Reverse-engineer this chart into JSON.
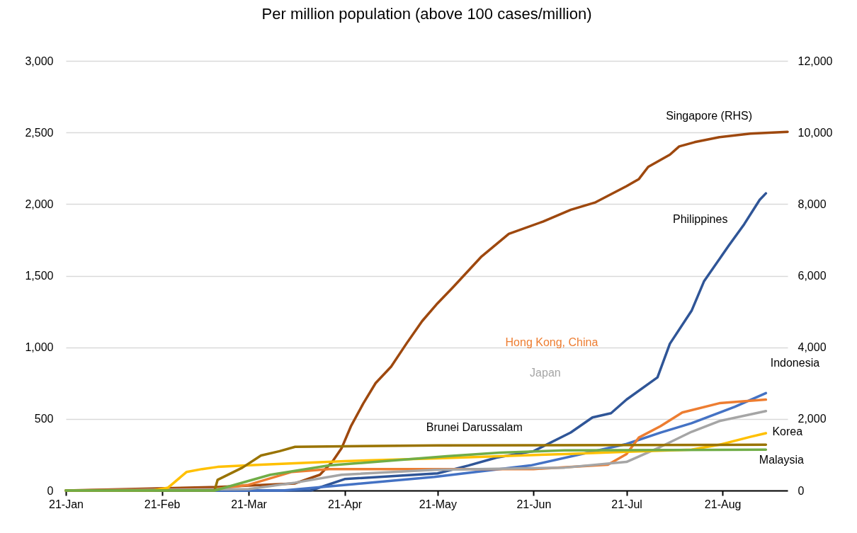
{
  "chart_data": {
    "type": "line",
    "title": "Per million population (above 100 cases/million)",
    "xlim": [
      "--01-21",
      "--09-11"
    ],
    "xticks": [
      {
        "value": "--01-21",
        "label": "21-Jan"
      },
      {
        "value": "--02-21",
        "label": "21-Feb"
      },
      {
        "value": "--03-21",
        "label": "21-Mar"
      },
      {
        "value": "--04-21",
        "label": "21-Apr"
      },
      {
        "value": "--05-21",
        "label": "21-May"
      },
      {
        "value": "--06-21",
        "label": "21-Jun"
      },
      {
        "value": "--07-21",
        "label": "21-Jul"
      },
      {
        "value": "--08-21",
        "label": "21-Aug"
      }
    ],
    "ylim": [
      0,
      3000
    ],
    "yticks": [
      0,
      500,
      {
        "value": 1000,
        "label": "1,000"
      },
      {
        "value": 1500,
        "label": "1,500"
      },
      {
        "value": 2000,
        "label": "2,000"
      },
      {
        "value": 2500,
        "label": "2,500"
      },
      {
        "value": 3000,
        "label": "3,000"
      }
    ],
    "y2lim": [
      0,
      12000
    ],
    "y2ticks": [
      0,
      {
        "value": 2000,
        "label": "2,000"
      },
      {
        "value": 4000,
        "label": "4,000"
      },
      {
        "value": 6000,
        "label": "6,000"
      },
      {
        "value": 8000,
        "label": "8,000"
      },
      {
        "value": 10000,
        "label": "10,000"
      },
      {
        "value": 12000,
        "label": "12,000"
      }
    ],
    "grid": "y",
    "line_style": "solid",
    "marker": "none",
    "series": [
      {
        "name": "Singapore (RHS)",
        "color": "#9e480e",
        "axis": "y2",
        "x": [
          "--01-21",
          "--03-11",
          "--04-05",
          "--04-13",
          "--04-17",
          "--04-20",
          "--04-23",
          "--04-27",
          "--05-01",
          "--05-06",
          "--05-11",
          "--05-16",
          "--05-21",
          "--05-26",
          "--06-04",
          "--06-13",
          "--06-24",
          "--07-03",
          "--07-11",
          "--07-21",
          "--07-25",
          "--07-28",
          "--08-04",
          "--08-07",
          "--08-12",
          "--08-20",
          "--08-30",
          "--09-11"
        ],
        "values": [
          0,
          100,
          200,
          440,
          800,
          1180,
          1790,
          2430,
          3000,
          3460,
          4110,
          4730,
          5230,
          5680,
          6520,
          7170,
          7510,
          7840,
          8050,
          8500,
          8700,
          9040,
          9380,
          9610,
          9730,
          9870,
          9970,
          10020
        ]
      },
      {
        "name": "Philippines",
        "color": "#2f5597",
        "x": [
          "--01-21",
          "--04-10",
          "--04-21",
          "--05-21",
          "--05-31",
          "--06-09",
          "--06-21",
          "--07-03",
          "--07-10",
          "--07-16",
          "--07-21",
          "--07-31",
          "--08-04",
          "--08-11",
          "--08-15",
          "--08-23",
          "--08-28",
          "--09-02",
          "--09-04"
        ],
        "values": [
          0,
          0,
          80,
          120,
          175,
          230,
          275,
          405,
          510,
          540,
          635,
          790,
          1025,
          1255,
          1460,
          1710,
          1860,
          2030,
          2075
        ]
      },
      {
        "name": "Indonesia",
        "color": "#4472c4",
        "x": [
          "--01-21",
          "--04-01",
          "--04-24",
          "--05-20",
          "--06-20",
          "--07-21",
          "--08-01",
          "--08-11",
          "--08-25",
          "--09-04"
        ],
        "values": [
          0,
          0,
          45,
          95,
          175,
          325,
          405,
          470,
          585,
          680
        ]
      },
      {
        "name": "Hong Kong, China",
        "color": "#ed7d31",
        "x": [
          "--01-21",
          "--03-10",
          "--03-21",
          "--04-04",
          "--04-16",
          "--06-21",
          "--07-15",
          "--07-21",
          "--07-25",
          "--08-01",
          "--08-08",
          "--08-20",
          "--09-04"
        ],
        "values": [
          0,
          10,
          40,
          130,
          150,
          150,
          180,
          255,
          370,
          450,
          545,
          610,
          635
        ]
      },
      {
        "name": "Japan",
        "color": "#a5a5a5",
        "x": [
          "--01-21",
          "--03-21",
          "--04-05",
          "--04-20",
          "--05-20",
          "--07-01",
          "--07-21",
          "--08-01",
          "--08-11",
          "--08-20",
          "--09-04"
        ],
        "values": [
          0,
          10,
          55,
          110,
          145,
          160,
          200,
          305,
          410,
          485,
          555
        ]
      },
      {
        "name": "Korea",
        "color": "#ffc000",
        "x": [
          "--01-21",
          "--02-18",
          "--02-23",
          "--03-01",
          "--03-06",
          "--03-11",
          "--03-25",
          "--04-21",
          "--05-21",
          "--07-01",
          "--07-21",
          "--08-11",
          "--08-20",
          "--08-30",
          "--09-04"
        ],
        "values": [
          0,
          0,
          20,
          130,
          150,
          165,
          180,
          205,
          225,
          255,
          270,
          285,
          320,
          375,
          400
        ]
      },
      {
        "name": "Brunei Darussalam",
        "color": "#997300",
        "x": [
          "--01-21",
          "--03-10",
          "--03-11",
          "--03-19",
          "--03-25",
          "--03-31",
          "--04-05",
          "--05-21",
          "--09-04"
        ],
        "values": [
          0,
          0,
          75,
          160,
          245,
          275,
          305,
          315,
          320
        ]
      },
      {
        "name": "Malaysia",
        "color": "#70ad47",
        "x": [
          "--01-21",
          "--03-10",
          "--03-28",
          "--04-16",
          "--05-24",
          "--06-10",
          "--07-01",
          "--09-04"
        ],
        "values": [
          0,
          0,
          110,
          175,
          240,
          265,
          280,
          285
        ]
      }
    ]
  }
}
